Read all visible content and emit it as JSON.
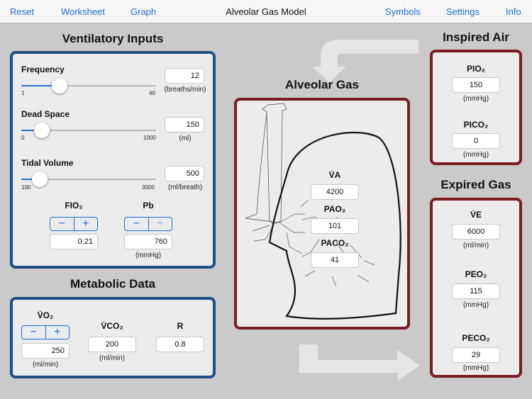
{
  "nav": {
    "reset": "Reset",
    "worksheet": "Worksheet",
    "graph": "Graph",
    "title": "Alveolar Gas Model",
    "symbols": "Symbols",
    "settings": "Settings",
    "info": "Info"
  },
  "ventilatory": {
    "title": "Ventilatory Inputs",
    "frequency": {
      "label": "Frequency",
      "value": "12",
      "unit": "(breaths/min)",
      "min": "1",
      "max": "40",
      "level": 0.282
    },
    "dead_space": {
      "label": "Dead Space",
      "value": "150",
      "unit": "(ml)",
      "min": "0",
      "max": "1000",
      "level": 0.15
    },
    "tidal_volume": {
      "label": "Tidal Volume",
      "value": "500",
      "unit": "(ml/breath)",
      "min": "100",
      "max": "3000",
      "level": 0.138
    },
    "fio2": {
      "label": "FIO₂",
      "value": "0.21"
    },
    "pb": {
      "label": "Pb",
      "value": "760",
      "unit": "(mmHg)"
    }
  },
  "metabolic": {
    "title": "Metabolic Data",
    "vo2": {
      "label": "V̇O₂",
      "value": "250",
      "unit": "(ml/min)"
    },
    "vco2": {
      "label": "V̇CO₂",
      "value": "200",
      "unit": "(ml/min)"
    },
    "r": {
      "label": "R",
      "value": "0.8"
    }
  },
  "alveolar": {
    "title": "Alveolar Gas",
    "va": {
      "label": "V̇A",
      "value": "4200"
    },
    "pao2": {
      "label": "PAO₂",
      "value": "101"
    },
    "paco2": {
      "label": "PACO₂",
      "value": "41"
    }
  },
  "inspired": {
    "title": "Inspired Air",
    "pio2": {
      "label": "PIO₂",
      "value": "150",
      "unit": "(mmHg)"
    },
    "pico2": {
      "label": "PICO₂",
      "value": "0",
      "unit": "(mmHg)"
    }
  },
  "expired": {
    "title": "Expired Gas",
    "ve": {
      "label": "V̇E",
      "value": "6000",
      "unit": "(ml/min)"
    },
    "peo2": {
      "label": "PEO₂",
      "value": "115",
      "unit": "(mmHg)"
    },
    "peco2": {
      "label": "PECO₂",
      "value": "29",
      "unit": "(mmHg)"
    }
  },
  "stepper_icons": {
    "minus": "minus-icon",
    "plus": "plus-icon"
  },
  "colors": {
    "accent": "#1f6fd6",
    "input_panel_border": "#1f4f86",
    "output_panel_border": "#7c1b22",
    "background": "#cacaca"
  }
}
